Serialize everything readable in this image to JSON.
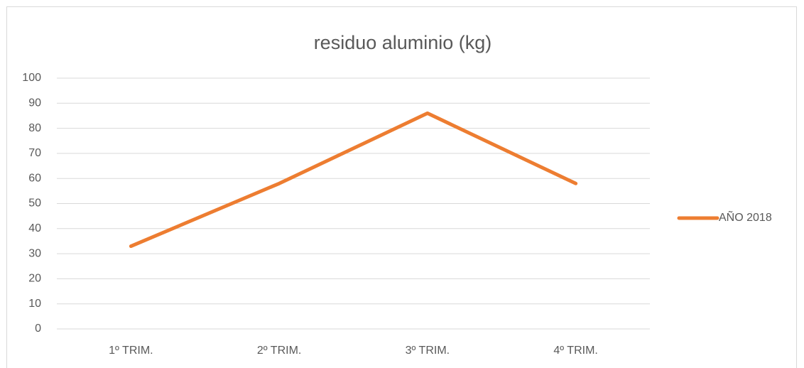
{
  "chart_data": {
    "type": "line",
    "title": "residuo aluminio (kg)",
    "categories": [
      "1º TRIM.",
      "2º TRIM.",
      "3º TRIM.",
      "4º TRIM."
    ],
    "series": [
      {
        "name": "AÑO 2018",
        "color": "#ed7d31",
        "values": [
          33,
          58,
          86,
          58
        ]
      }
    ],
    "ylim": [
      0,
      100
    ],
    "yticks": [
      0,
      10,
      20,
      30,
      40,
      50,
      60,
      70,
      80,
      90,
      100
    ],
    "grid": true,
    "legend": "right"
  }
}
